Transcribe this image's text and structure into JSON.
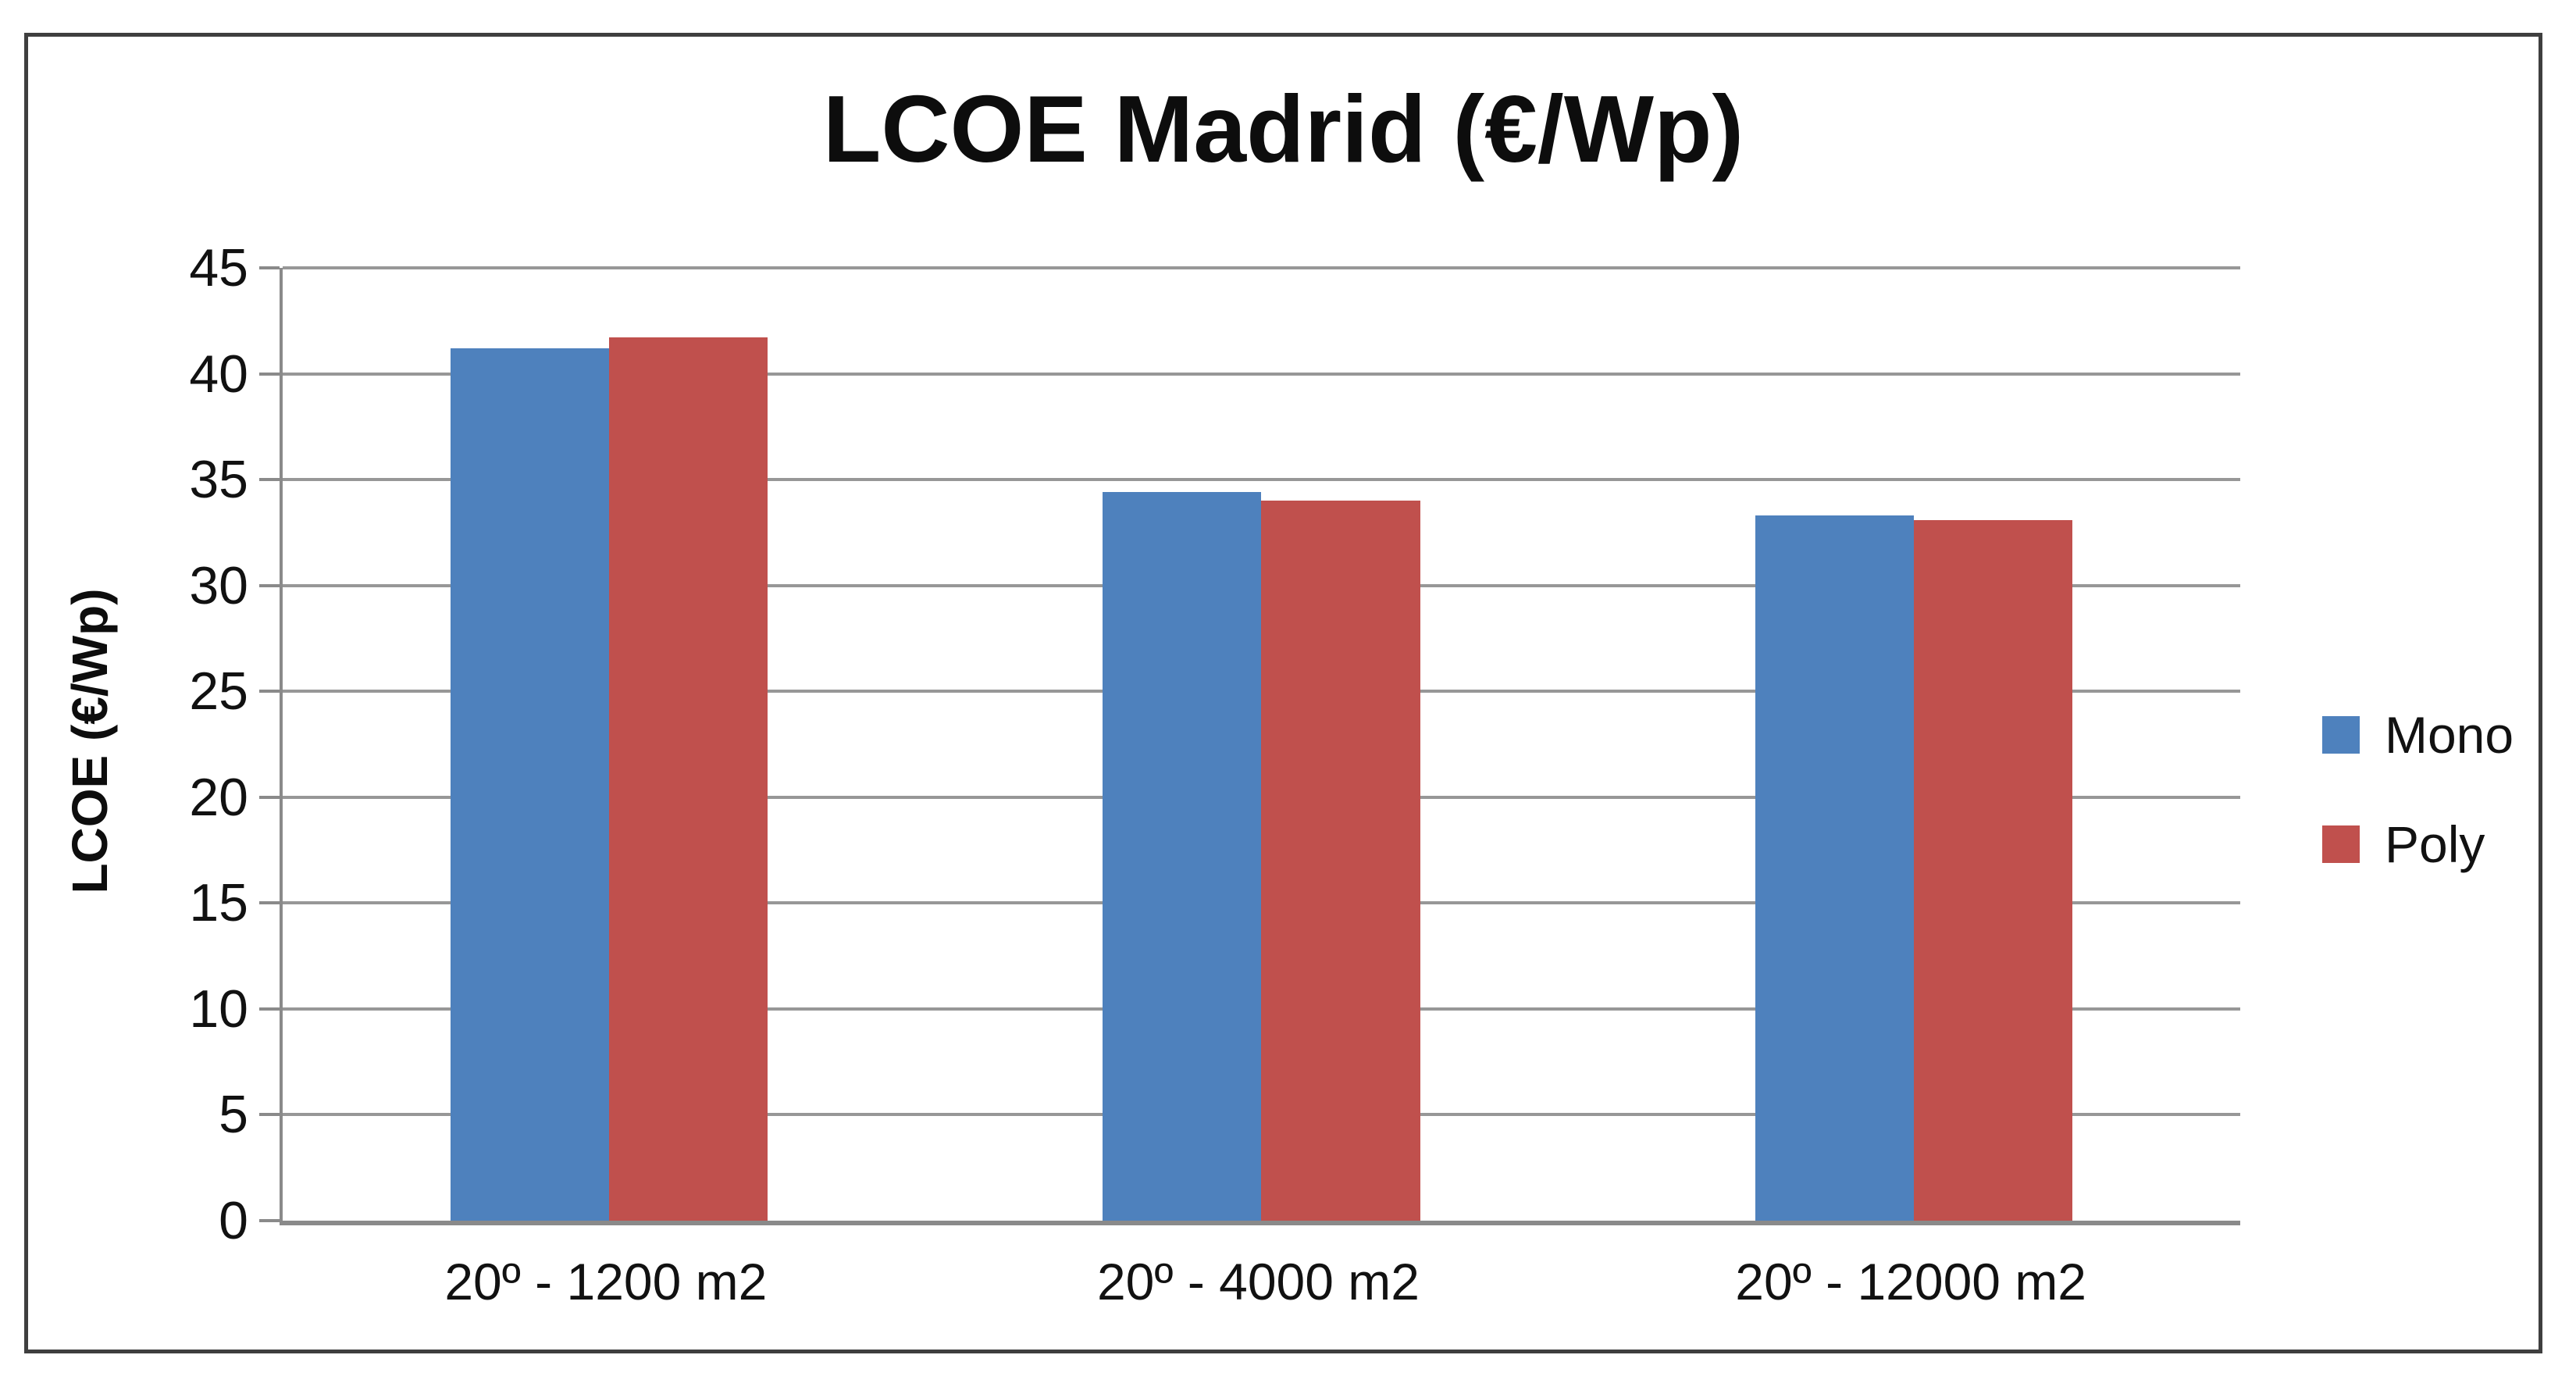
{
  "title": "LCOE Madrid (€/Wp)",
  "chart_data": {
    "type": "bar",
    "title": "LCOE Madrid (€/Wp)",
    "xlabel": "",
    "ylabel": "LCOE (€/Wp)",
    "categories": [
      "20º - 1200 m2",
      "20º - 4000 m2",
      "20º - 12000 m2"
    ],
    "series": [
      {
        "name": "Mono",
        "color": "#4E81BD",
        "values": [
          41.2,
          34.4,
          33.3
        ]
      },
      {
        "name": "Poly",
        "color": "#C0504D",
        "values": [
          41.7,
          34.0,
          33.1
        ]
      }
    ],
    "ylim": [
      0,
      45
    ],
    "yticks": [
      0,
      5,
      10,
      15,
      20,
      25,
      30,
      35,
      40,
      45
    ],
    "grid": true,
    "gridline_color": "#979797",
    "axis_color": "#8a8a8a",
    "frame_color": "#3f3f3f",
    "legend_position": "right"
  }
}
